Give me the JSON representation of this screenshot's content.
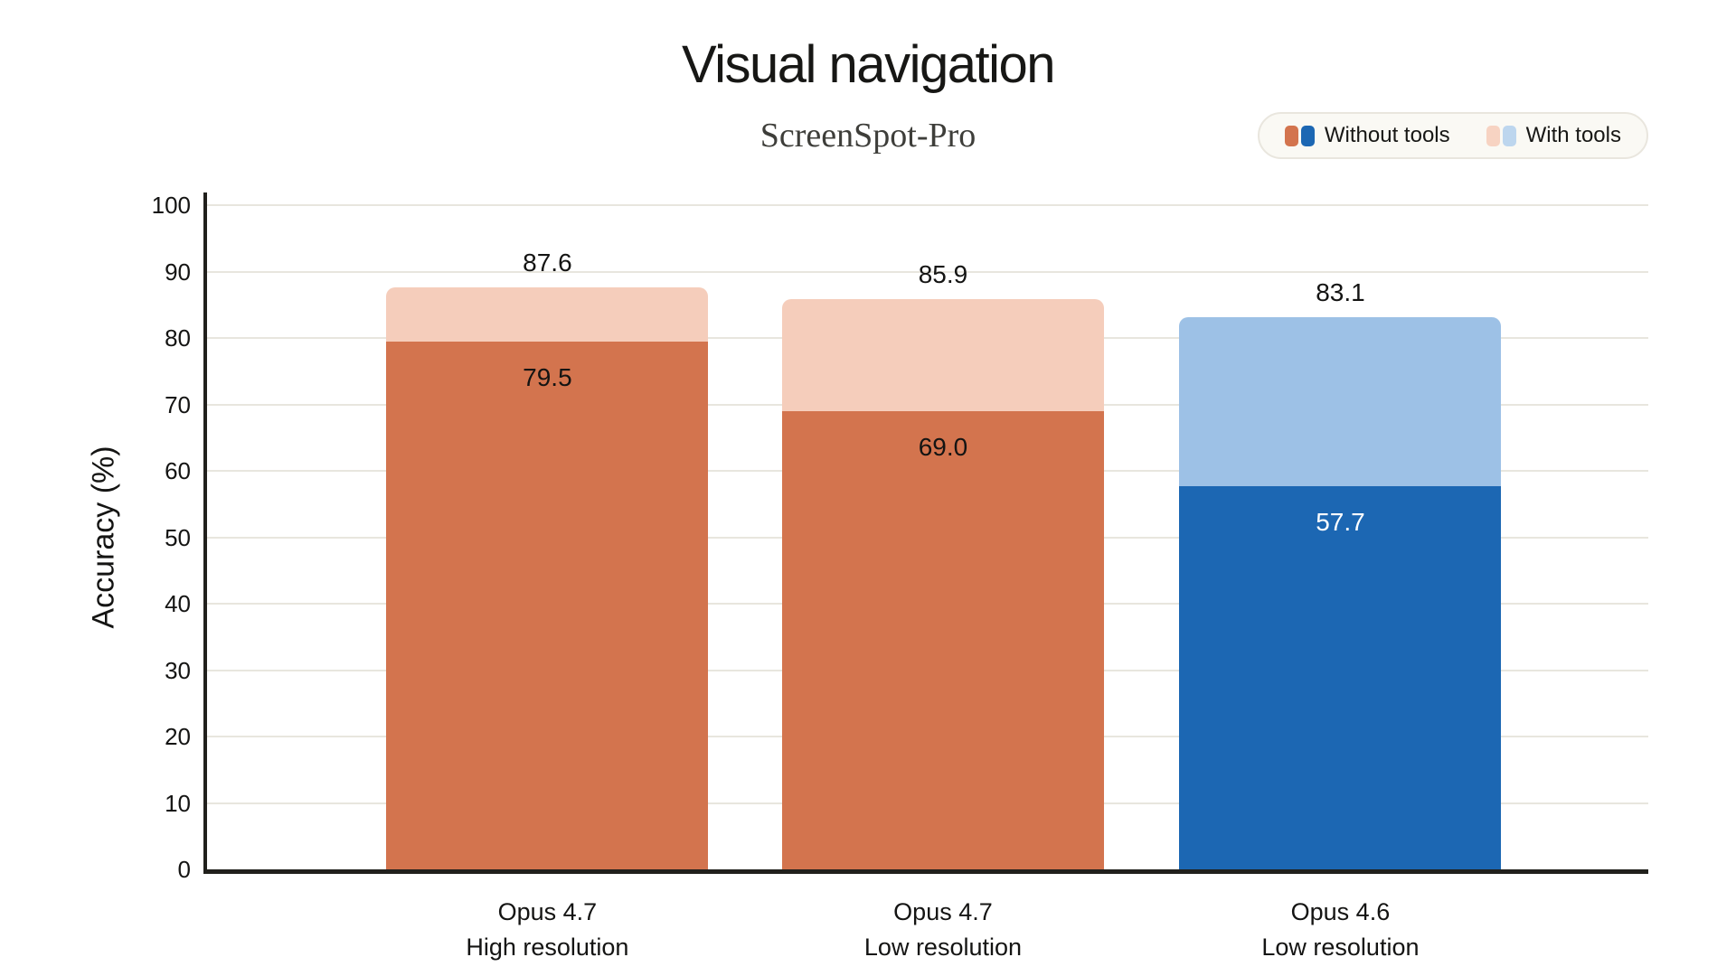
{
  "chart_data": {
    "type": "bar",
    "variant": "overlay-stacked",
    "title": "Visual navigation",
    "subtitle": "ScreenSpot-Pro",
    "ylabel": "Accuracy (%)",
    "ylim": [
      0,
      100
    ],
    "yticks": [
      0,
      10,
      20,
      30,
      40,
      50,
      60,
      70,
      80,
      90,
      100
    ],
    "grid": "horizontal",
    "legend": {
      "position": "top-right",
      "items": [
        {
          "label": "Without tools",
          "swatch_colors": [
            "#D3744E",
            "#1C67B3"
          ]
        },
        {
          "label": "With tools",
          "swatch_colors": [
            "#F7D3C2",
            "#BDD6EE"
          ]
        }
      ]
    },
    "categories": [
      "Opus 4.7\nHigh resolution",
      "Opus 4.7\nLow resolution",
      "Opus 4.6\nLow resolution"
    ],
    "series": [
      {
        "name": "With tools",
        "values": [
          87.6,
          85.9,
          83.1
        ]
      },
      {
        "name": "Without tools",
        "values": [
          79.5,
          69.0,
          57.7
        ]
      }
    ],
    "bars": [
      {
        "category_lines": [
          "Opus 4.7",
          "High resolution"
        ],
        "with_tools": 87.6,
        "without_tools": 79.5,
        "total_label": "87.6",
        "inner_label": "79.5",
        "with_color": "#F5CDBB",
        "without_color": "#D3744E",
        "inner_label_color": "#141413"
      },
      {
        "category_lines": [
          "Opus 4.7",
          "Low resolution"
        ],
        "with_tools": 85.9,
        "without_tools": 69.0,
        "total_label": "85.9",
        "inner_label": "69.0",
        "with_color": "#F5CDBB",
        "without_color": "#D3744E",
        "inner_label_color": "#141413"
      },
      {
        "category_lines": [
          "Opus 4.6",
          "Low resolution"
        ],
        "with_tools": 83.1,
        "without_tools": 57.7,
        "total_label": "83.1",
        "inner_label": "57.7",
        "with_color": "#9DC1E6",
        "without_color": "#1C67B3",
        "inner_label_color": "#FFFFFF"
      }
    ],
    "colors": {
      "background": "#FFFFFF",
      "grid": "#E8E6DE",
      "spine": "#21201C",
      "text": "#141413",
      "legend_background": "#FAF9F4",
      "legend_border": "#E9E6DE"
    }
  }
}
